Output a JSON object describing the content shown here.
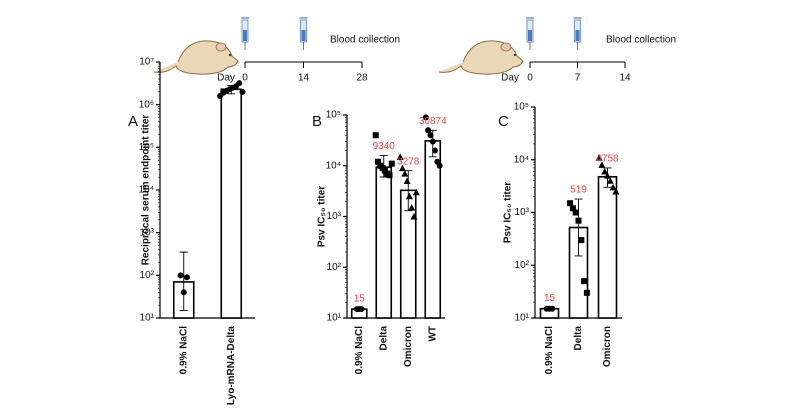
{
  "schedules": [
    {
      "day_label": "Day",
      "days": [
        0,
        14,
        28
      ],
      "event": "Blood collection"
    },
    {
      "day_label": "Day",
      "days": [
        0,
        7,
        14
      ],
      "event": "Blood collection"
    }
  ],
  "chart_data": [
    {
      "type": "bar",
      "panel": "A",
      "ylabel": "Reciprocal serum endpoint titer",
      "categories": [
        "0.9% NaCl",
        "Lyo-mRNA-Delta"
      ],
      "values": [
        70,
        2300000
      ],
      "error_range": [
        [
          15,
          350
        ],
        [
          1800000,
          2800000
        ]
      ],
      "points": [
        [
          100,
          40,
          90
        ],
        [
          1600000,
          1900000,
          2100000,
          2300000,
          2500000,
          2700000,
          3200000,
          2000000
        ]
      ],
      "markers": [
        "circle",
        "circle"
      ],
      "data_labels": false,
      "log_scale": true,
      "ylim": [
        10,
        10000000
      ],
      "yticks": [
        {
          "value": 10,
          "label": "10¹"
        },
        {
          "value": 100,
          "label": "10²"
        },
        {
          "value": 1000,
          "label": "10³"
        },
        {
          "value": 10000,
          "label": "10⁴"
        },
        {
          "value": 100000,
          "label": "10⁵"
        },
        {
          "value": 1000000,
          "label": "10⁶"
        },
        {
          "value": 10000000,
          "label": "10⁷"
        }
      ],
      "bar_color": "#ffffff",
      "edge_color": "#000000",
      "point_color": "#000000",
      "label_color": "#e0474c"
    },
    {
      "type": "bar",
      "panel": "B",
      "ylabel": "Psv IC₅₀ titer",
      "categories": [
        "0.9% NaCl",
        "Delta",
        "Omicron",
        "WT"
      ],
      "values": [
        15,
        9340,
        3278,
        30874
      ],
      "error_range": [
        [
          14,
          16
        ],
        [
          6000,
          16000
        ],
        [
          1300,
          8000
        ],
        [
          15000,
          50000
        ]
      ],
      "points": [
        [
          15,
          15,
          15
        ],
        [
          40000,
          12000,
          10000,
          9000,
          8000,
          7000,
          6500,
          11000
        ],
        [
          15000,
          9000,
          7000,
          5000,
          2500,
          1500,
          1000,
          3000
        ],
        [
          90000,
          50000,
          40000,
          30000,
          20000,
          12000,
          10000
        ]
      ],
      "markers": [
        "circle",
        "square",
        "triangle",
        "circle"
      ],
      "data_labels": true,
      "log_scale": true,
      "ylim": [
        10,
        100000
      ],
      "yticks": [
        {
          "value": 10,
          "label": "10¹"
        },
        {
          "value": 100,
          "label": "10²"
        },
        {
          "value": 1000,
          "label": "10³"
        },
        {
          "value": 10000,
          "label": "10⁴"
        },
        {
          "value": 100000,
          "label": "10⁵"
        }
      ],
      "bar_color": "#ffffff",
      "edge_color": "#000000",
      "point_color": "#000000",
      "label_color": "#e0474c"
    },
    {
      "type": "bar",
      "panel": "C",
      "ylabel": "Psv IC₅₀ titer",
      "categories": [
        "0.9% NaCl",
        "Delta",
        "Omicron"
      ],
      "values": [
        15,
        519,
        4758
      ],
      "error_range": [
        [
          14,
          16
        ],
        [
          150,
          1800
        ],
        [
          3000,
          7000
        ]
      ],
      "points": [
        [
          15,
          15,
          15
        ],
        [
          1500,
          1200,
          1000,
          700,
          300,
          50,
          30
        ],
        [
          11000,
          8000,
          6000,
          5000,
          4000,
          3000,
          2500
        ]
      ],
      "markers": [
        "circle",
        "square",
        "triangle"
      ],
      "data_labels": true,
      "log_scale": true,
      "ylim": [
        10,
        100000
      ],
      "yticks": [
        {
          "value": 10,
          "label": "10¹"
        },
        {
          "value": 100,
          "label": "10²"
        },
        {
          "value": 1000,
          "label": "10³"
        },
        {
          "value": 10000,
          "label": "10⁴"
        },
        {
          "value": 100000,
          "label": "10⁵"
        }
      ],
      "bar_color": "#ffffff",
      "edge_color": "#000000",
      "point_color": "#000000",
      "label_color": "#e0474c"
    }
  ]
}
